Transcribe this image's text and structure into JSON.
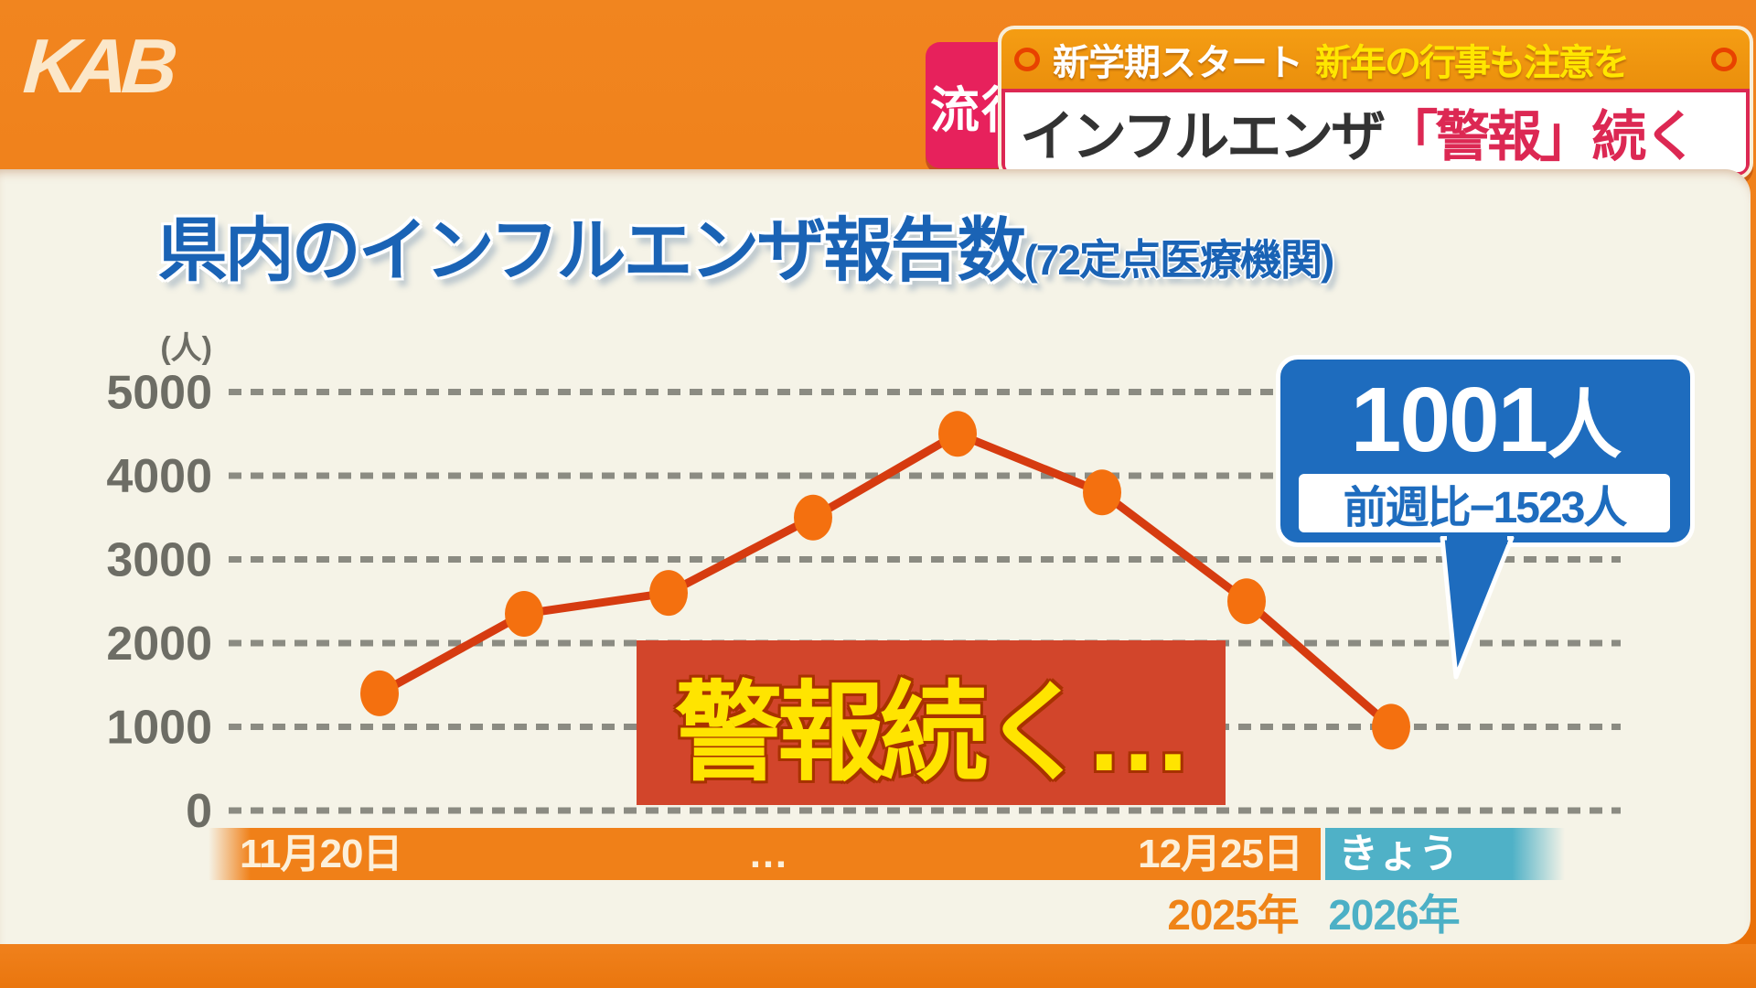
{
  "station_logo": "KAB",
  "header": {
    "category_badge": "流行",
    "top_banner": {
      "white_text": "新学期スタート",
      "yellow_text": "新年の行事も注意を"
    },
    "main_banner": {
      "dark_text": "インフルエンザ",
      "red_text": "「警報」続く"
    }
  },
  "chart_data": {
    "type": "line",
    "title": "県内のインフルエンザ報告数",
    "title_note": "(72定点医療機関)",
    "y_unit": "(人)",
    "y_ticks": [
      0,
      1000,
      2000,
      3000,
      4000,
      5000
    ],
    "ylim": [
      0,
      5200
    ],
    "grid": true,
    "x_tick_labels": [
      "11月20日",
      "…",
      "12月25日",
      "きょう"
    ],
    "years": {
      "left": "2025年",
      "right": "2026年"
    },
    "values": [
      1400,
      2350,
      2600,
      3500,
      4500,
      3800,
      2500,
      1001
    ],
    "line_color": "#d63b10",
    "dot_color": "#f4700f",
    "grid_color": "#8b8b82",
    "tick_label_color": "#6d6d65"
  },
  "alert_overlay": "警報続く…",
  "callout": {
    "main_number": "1001",
    "main_unit": "人",
    "sub": "前週比−1523人"
  }
}
